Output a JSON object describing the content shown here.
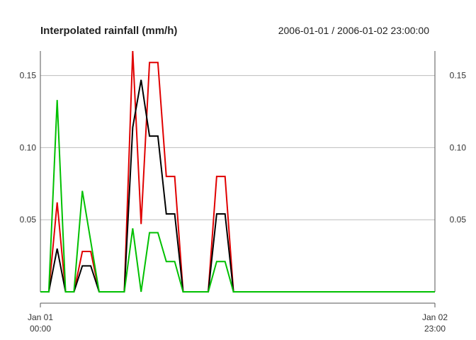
{
  "chart_data": {
    "type": "line",
    "title": "Interpolated rainfall (mm/h)",
    "period": "2006-01-01 / 2006-01-02 23:00:00",
    "x_start": "2006-01-01 00:00",
    "x_end": "2006-01-02 23:00",
    "x_tick_labels": [
      {
        "line1": "Jan 01",
        "line2": "00:00"
      },
      {
        "line1": "Jan 02",
        "line2": "23:00"
      }
    ],
    "y_tick_labels": [
      "0.05",
      "0.10",
      "0.15"
    ],
    "y_ticks": [
      0.05,
      0.1,
      0.15
    ],
    "ylim": [
      0,
      0.167
    ],
    "grid": true,
    "series": [
      {
        "color": "#e00000",
        "values": [
          0,
          0,
          0.062,
          0,
          0,
          0.028,
          0.028,
          0,
          0,
          0,
          0,
          0.167,
          0.047,
          0.159,
          0.159,
          0.08,
          0.08,
          0,
          0,
          0,
          0,
          0.08,
          0.08,
          0,
          0,
          0,
          0,
          0,
          0,
          0,
          0,
          0,
          0,
          0,
          0,
          0,
          0,
          0,
          0,
          0,
          0,
          0,
          0,
          0,
          0,
          0,
          0,
          0
        ]
      },
      {
        "color": "#000000",
        "values": [
          0,
          0,
          0.03,
          0,
          0,
          0.018,
          0.018,
          0,
          0,
          0,
          0,
          0.114,
          0.147,
          0.108,
          0.108,
          0.054,
          0.054,
          0,
          0,
          0,
          0,
          0.054,
          0.054,
          0,
          0,
          0,
          0,
          0,
          0,
          0,
          0,
          0,
          0,
          0,
          0,
          0,
          0,
          0,
          0,
          0,
          0,
          0,
          0,
          0,
          0,
          0,
          0,
          0
        ]
      },
      {
        "color": "#00c000",
        "values": [
          0,
          0,
          0.133,
          0,
          0,
          0.07,
          0.035,
          0,
          0,
          0,
          0,
          0.044,
          0,
          0.041,
          0.041,
          0.021,
          0.021,
          0,
          0,
          0,
          0,
          0.021,
          0.021,
          0,
          0,
          0,
          0,
          0,
          0,
          0,
          0,
          0,
          0,
          0,
          0,
          0,
          0,
          0,
          0,
          0,
          0,
          0,
          0,
          0,
          0,
          0,
          0,
          0
        ]
      }
    ]
  }
}
